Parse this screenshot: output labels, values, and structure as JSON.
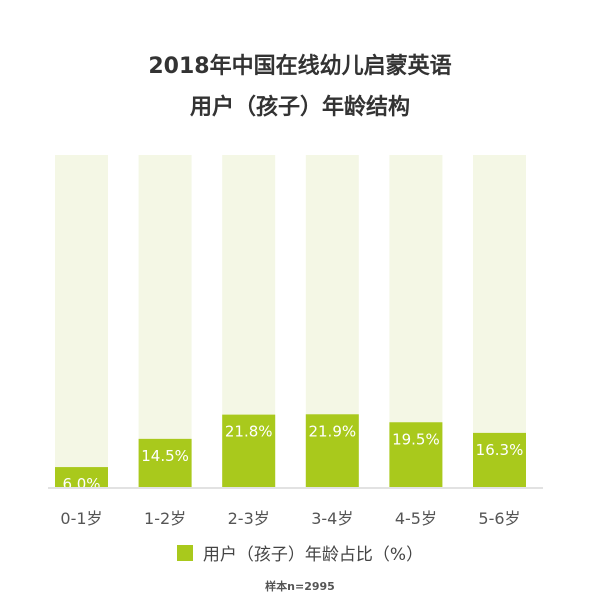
{
  "chart_data": {
    "type": "bar",
    "title": "2018年中国在线幼儿启蒙英语",
    "subtitle": "用户（孩子）年龄结构",
    "categories": [
      "0-1岁",
      "1-2岁",
      "2-3岁",
      "3-4岁",
      "4-5岁",
      "5-6岁"
    ],
    "series": [
      {
        "name": "用户（孩子）年龄占比（%）",
        "values": [
          6.0,
          14.5,
          21.8,
          21.9,
          19.5,
          16.3
        ]
      }
    ],
    "data_labels": [
      "6.0%",
      "14.5%",
      "21.8%",
      "21.9%",
      "19.5%",
      "16.3%"
    ],
    "ylim": [
      0,
      100
    ],
    "xlabel": "",
    "ylabel": "",
    "grid": false,
    "legend_position": "bottom",
    "note": "样本n=2995",
    "colors": {
      "bar": "#a9c91c",
      "background_bar": "#f4f7e5",
      "axis": "#d8d8d8"
    }
  }
}
